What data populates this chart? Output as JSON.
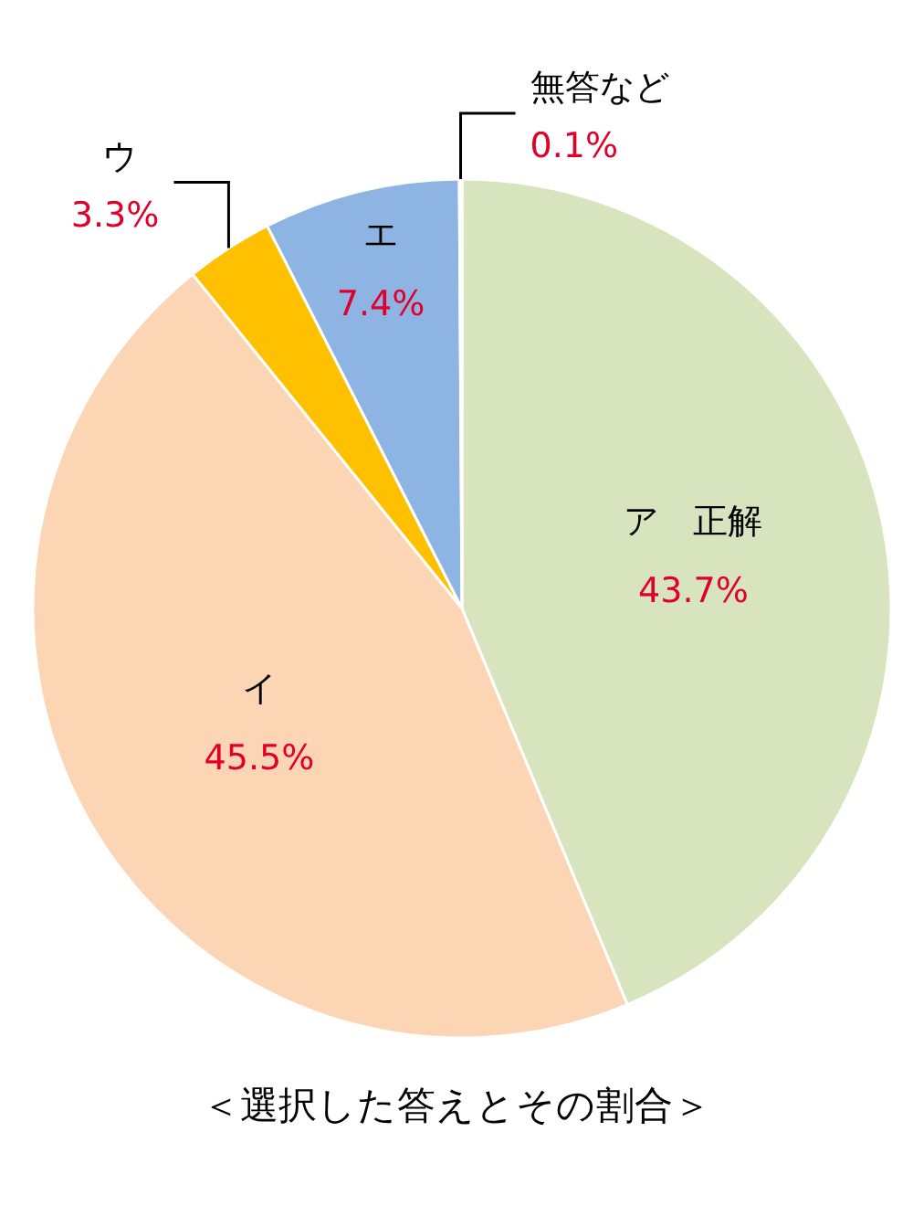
{
  "chart_data": {
    "type": "pie",
    "title": "＜選択した答えとその割合＞",
    "categories": [
      "ア　正解",
      "イ",
      "ウ",
      "エ",
      "無答など"
    ],
    "values": [
      43.7,
      45.5,
      3.3,
      7.4,
      0.1
    ],
    "colors": [
      "#d7e4bd",
      "#fcd5b5",
      "#ffc000",
      "#8eb4e3",
      "#d9d9d9"
    ],
    "value_labels": [
      "43.7%",
      "45.5%",
      "3.3%",
      "7.4%",
      "0.1%"
    ]
  }
}
